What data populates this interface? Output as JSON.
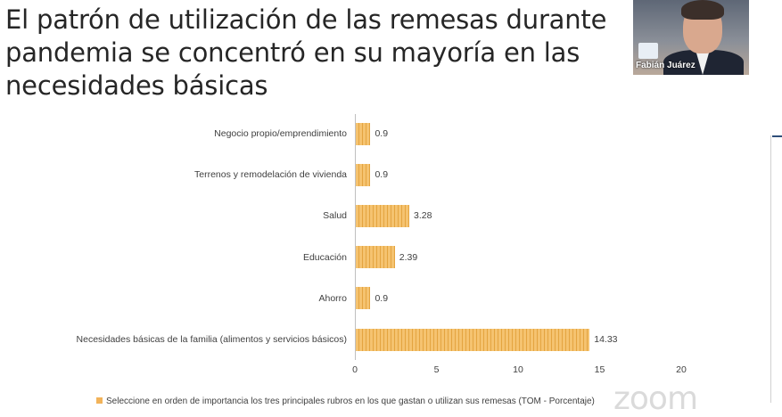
{
  "slide": {
    "title_line1": "El patrón de utilización de las remesas durante",
    "title_line2": "pandemia se concentró en su mayoría en las",
    "title_line3": "necesidades básicas"
  },
  "participant": {
    "name": "Fabián Juárez"
  },
  "watermark": "zoom",
  "chart_data": {
    "type": "bar",
    "orientation": "horizontal",
    "title": "",
    "categories": [
      "Negocio propio/emprendimiento",
      "Terrenos y remodelación de vivienda",
      "Salud",
      "Educación",
      "Ahorro",
      "Necesidades básicas de la familia (alimentos y servicios básicos)"
    ],
    "values": [
      0.9,
      0.9,
      3.28,
      2.39,
      0.9,
      14.33
    ],
    "value_labels": [
      "0.9",
      "0.9",
      "3.28",
      "2.39",
      "0.9",
      "14.33"
    ],
    "xlim": [
      0,
      20
    ],
    "xticks": [
      "0",
      "5",
      "10",
      "15",
      "20"
    ],
    "xlabel": "",
    "ylabel": "",
    "legend": "Seleccione  en orden de importancia los tres principales rubros en los que gastan o utilizan sus remesas (TOM - Porcentaje)",
    "bar_color": "#f5c370"
  }
}
